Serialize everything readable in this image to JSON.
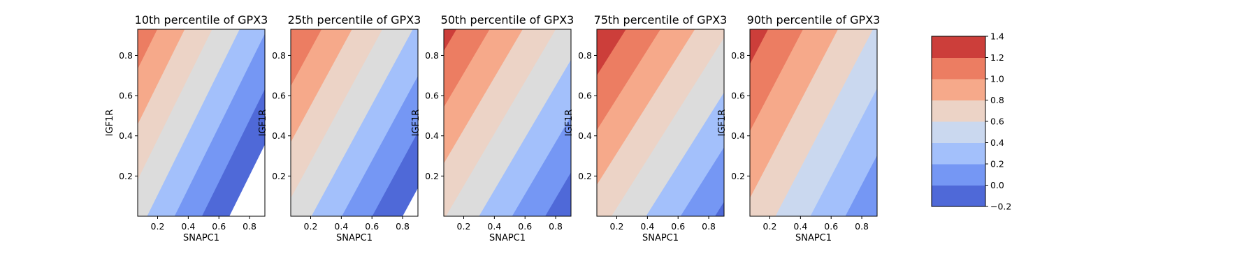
{
  "chart_data": {
    "type": "contour",
    "panels": [
      {
        "title": "10th percentile of GPX3",
        "xlabel": "SNAPC1",
        "ylabel": "IGF1R",
        "xlim": [
          0.07,
          0.9
        ],
        "ylim": [
          0.0,
          0.93
        ],
        "xticks": [
          "0.2",
          "0.4",
          "0.6",
          "0.8"
        ],
        "yticks": [
          "0.2",
          "0.4",
          "0.6",
          "0.8"
        ],
        "surface": {
          "intercept": 0.545,
          "slope_x": -1.117,
          "slope_y": 0.725
        }
      },
      {
        "title": "25th percentile of GPX3",
        "xlabel": "SNAPC1",
        "ylabel": "IGF1R",
        "xlim": [
          0.07,
          0.9
        ],
        "ylim": [
          0.0,
          0.93
        ],
        "xticks": [
          "0.2",
          "0.4",
          "0.6",
          "0.8"
        ],
        "yticks": [
          "0.2",
          "0.4",
          "0.6",
          "0.8"
        ],
        "surface": {
          "intercept": 0.605,
          "slope_x": -1.008,
          "slope_y": 0.717
        }
      },
      {
        "title": "50th percentile of GPX3",
        "xlabel": "SNAPC1",
        "ylabel": "IGF1R",
        "xlim": [
          0.07,
          0.9
        ],
        "ylim": [
          0.0,
          0.93
        ],
        "xticks": [
          "0.2",
          "0.4",
          "0.6",
          "0.8"
        ],
        "yticks": [
          "0.2",
          "0.4",
          "0.6",
          "0.8"
        ],
        "surface": {
          "intercept": 0.676,
          "slope_x": -0.926,
          "slope_y": 0.714
        }
      },
      {
        "title": "75th percentile of GPX3",
        "xlabel": "SNAPC1",
        "ylabel": "IGF1R",
        "xlim": [
          0.07,
          0.9
        ],
        "ylim": [
          0.0,
          0.93
        ],
        "xticks": [
          "0.2",
          "0.4",
          "0.6",
          "0.8"
        ],
        "yticks": [
          "0.2",
          "0.4",
          "0.6",
          "0.8"
        ],
        "surface": {
          "intercept": 0.746,
          "slope_x": -0.889,
          "slope_y": 0.735
        }
      },
      {
        "title": "90th percentile of GPX3",
        "xlabel": "SNAPC1",
        "ylabel": "IGF1R",
        "xlim": [
          0.07,
          0.9
        ],
        "ylim": [
          0.0,
          0.93
        ],
        "xticks": [
          "0.2",
          "0.4",
          "0.6",
          "0.8"
        ],
        "yticks": [
          "0.2",
          "0.4",
          "0.6",
          "0.8"
        ],
        "surface": {
          "intercept": 0.806,
          "slope_x": -0.877,
          "slope_y": 0.6
        }
      }
    ],
    "colorbar": {
      "levels": [
        -0.2,
        0.0,
        0.2,
        0.4,
        0.6,
        0.8,
        1.0,
        1.2,
        1.4
      ],
      "tick_labels": [
        "−0.2",
        "0.0",
        "0.2",
        "0.4",
        "0.6",
        "0.8",
        "1.0",
        "1.2",
        "1.4"
      ],
      "colors": [
        "#4f69d8",
        "#7597f4",
        "#a3c0fb",
        "#cad8ef",
        "#ecd3c6",
        "#f6a98a",
        "#ec7d62",
        "#cc3e3a"
      ]
    },
    "colors": {
      "neutral": "#dcdcdc",
      "axes": "#000000"
    },
    "grid": false,
    "colormap": "coolwarm"
  }
}
